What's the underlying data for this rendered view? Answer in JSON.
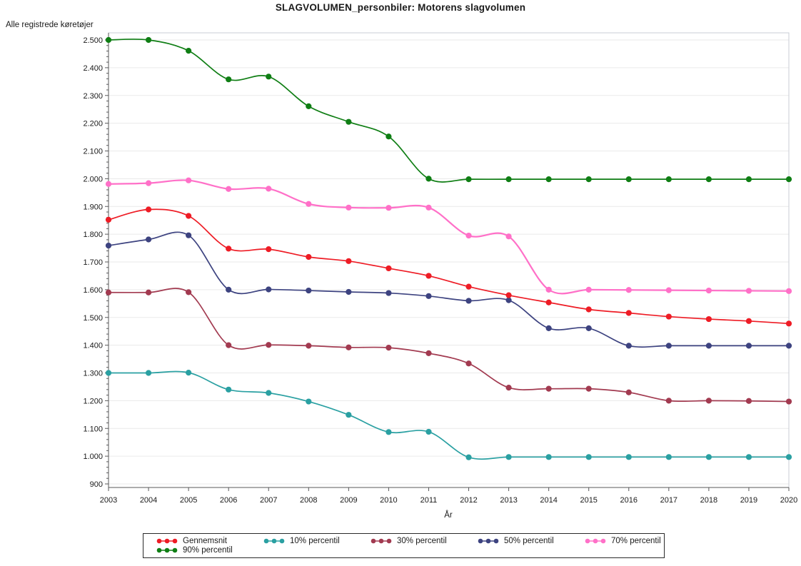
{
  "page": {
    "title": "SLAGVOLUMEN_personbiler: Motorens slagvolumen"
  },
  "chart_data": {
    "type": "line",
    "title": "SLAGVOLUMEN_personbiler: Motorens slagvolumen",
    "y_axis_label_top": "Alle registrede køretøjer",
    "xlabel": "År",
    "grid": "horizontal-majors",
    "legend_position": "bottom",
    "ylim": [
      887,
      2528
    ],
    "x": [
      2003,
      2004,
      2005,
      2006,
      2007,
      2008,
      2009,
      2010,
      2011,
      2012,
      2013,
      2014,
      2015,
      2016,
      2017,
      2018,
      2019,
      2020
    ],
    "x_tick_labels": [
      "2003",
      "2004",
      "2005",
      "2006",
      "2007",
      "2008",
      "2009",
      "2010",
      "2011",
      "2012",
      "2013",
      "2014",
      "2015",
      "2016",
      "2017",
      "2018",
      "2019",
      "2020"
    ],
    "y_major_values": [
      2500,
      2400,
      2300,
      2200,
      2100,
      2000,
      1900,
      1800,
      1700,
      1600,
      1500,
      1400,
      1300,
      1200,
      1100,
      1000,
      900
    ],
    "y_tick_labels": [
      "2.500",
      "2.400",
      "2.300",
      "2.200",
      "2.100",
      "2.000",
      "1.900",
      "1.800",
      "1.700",
      "1.600",
      "1.500",
      "1.400",
      "1.300",
      "1.200",
      "1.100",
      "1.000",
      "900"
    ],
    "y_minor_step": 20,
    "series": [
      {
        "name": "Gennemsnit",
        "color": "#ee1c25",
        "values": [
          1852,
          1889,
          1866,
          1748,
          1746,
          1718,
          1703,
          1677,
          1650,
          1611,
          1580,
          1554,
          1529,
          1516,
          1503,
          1494,
          1487,
          1478
        ]
      },
      {
        "name": "10% percentil",
        "color": "#2aa0a2",
        "values": [
          1300,
          1300,
          1301,
          1240,
          1228,
          1197,
          1149,
          1087,
          1088,
          996,
          997,
          997,
          997,
          997,
          997,
          997,
          997,
          997
        ]
      },
      {
        "name": "30% percentil",
        "color": "#a23a50",
        "values": [
          1590,
          1590,
          1591,
          1400,
          1401,
          1398,
          1392,
          1391,
          1371,
          1334,
          1247,
          1243,
          1243,
          1230,
          1200,
          1200,
          1199,
          1197
        ]
      },
      {
        "name": "50% percentil",
        "color": "#3d4380",
        "values": [
          1759,
          1781,
          1796,
          1600,
          1601,
          1597,
          1592,
          1588,
          1577,
          1560,
          1562,
          1461,
          1461,
          1398,
          1398,
          1398,
          1398,
          1398
        ]
      },
      {
        "name": "70% percentil",
        "color": "#ff70c8",
        "values": [
          1981,
          1984,
          1994,
          1963,
          1964,
          1909,
          1896,
          1895,
          1896,
          1795,
          1792,
          1600,
          1600,
          1599,
          1598,
          1597,
          1596,
          1595
        ]
      },
      {
        "name": "90% percentil",
        "color": "#0f7e14",
        "values": [
          2500,
          2500,
          2461,
          2358,
          2368,
          2261,
          2205,
          2152,
          2000,
          1998,
          1998,
          1998,
          1998,
          1998,
          1998,
          1998,
          1998,
          1998
        ]
      }
    ],
    "legend_rows": [
      [
        "Gennemsnit",
        "10% percentil",
        "30% percentil",
        "50% percentil",
        "70% percentil"
      ],
      [
        "90% percentil"
      ]
    ]
  }
}
